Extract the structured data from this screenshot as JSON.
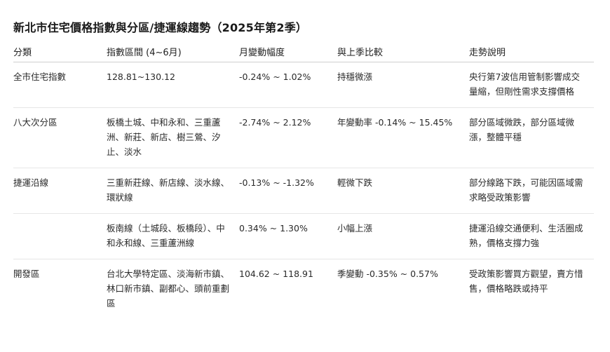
{
  "title": "新北市住宅價格指數與分區/捷運線趨勢（2025年第2季）",
  "table": {
    "headers": [
      "分類",
      "指數區間 (4~6月)",
      "月變動幅度",
      "與上季比較",
      "走勢說明"
    ],
    "rows": [
      {
        "category": "全市住宅指數",
        "index_range": "128.81~130.12",
        "monthly_change": "-0.24% ~ 1.02%",
        "vs_last_quarter": "持穩微漲",
        "trend_note": "央行第7波信用管制影響成交量縮，但剛性需求支撐價格"
      },
      {
        "category": "八大次分區",
        "index_range": "板橋土城、中和永和、三重蘆洲、新莊、新店、樹三鶯、汐止、淡水",
        "monthly_change": "-2.74% ~ 2.12%",
        "vs_last_quarter": "年變動率 -0.14% ~ 15.45%",
        "trend_note": "部分區域微跌，部分區域微漲，整體平穩"
      },
      {
        "category": "捷運沿線",
        "index_range": "三重新莊線、新店線、淡水線、環狀線",
        "monthly_change": "-0.13% ~ -1.32%",
        "vs_last_quarter": "輕微下跌",
        "trend_note": "部分線路下跌，可能因區域需求略受政策影響"
      },
      {
        "category": "",
        "index_range": "板南線（土城段、板橋段）、中和永和線、三重蘆洲線",
        "monthly_change": "0.34% ~ 1.30%",
        "vs_last_quarter": "小幅上漲",
        "trend_note": "捷運沿線交通便利、生活圈成熟，價格支撐力強"
      },
      {
        "category": "開發區",
        "index_range": "台北大學特定區、淡海新市鎮、林口新市鎮、副都心、頭前重劃區",
        "monthly_change": "104.62 ~ 118.91",
        "vs_last_quarter": "季變動 -0.35% ~ 0.57%",
        "trend_note": "受政策影響買方觀望，賣方惜售，價格略跌或持平"
      }
    ]
  }
}
